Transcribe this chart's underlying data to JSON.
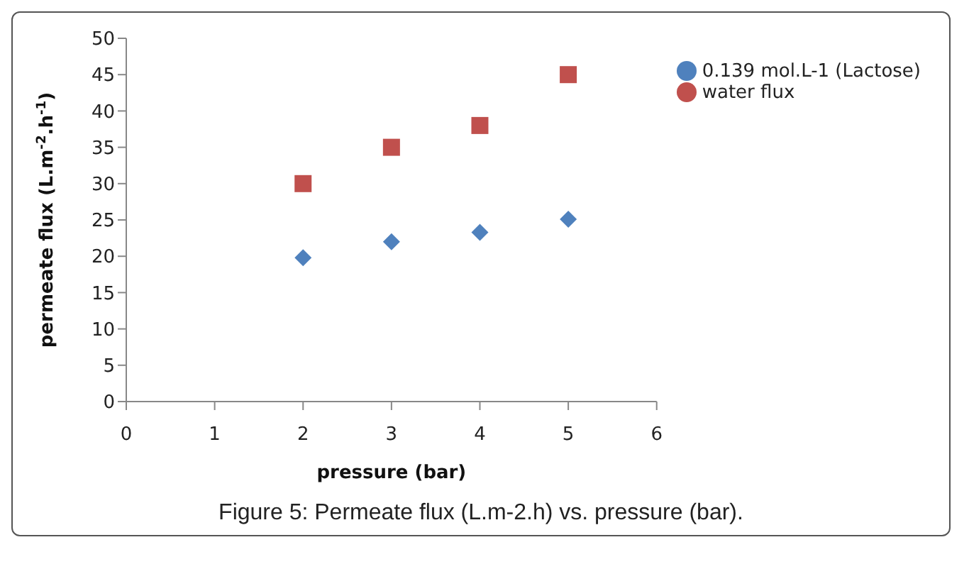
{
  "chart_data": {
    "type": "scatter",
    "xlabel": "pressure (bar)",
    "ylabel": "permeate  flux (L.m$^{-2}$.h$^{-1}$)",
    "x": [
      2,
      3,
      4,
      5
    ],
    "series": [
      {
        "name": "0.139 mol.L-1 (Lactose)",
        "color": "#4f81bd",
        "marker": "diamond",
        "values": [
          19.8,
          22,
          23.3,
          25.1
        ]
      },
      {
        "name": "water flux",
        "color": "#c0504d",
        "marker": "square",
        "values": [
          30,
          35,
          38,
          45
        ]
      }
    ],
    "xlim": [
      0,
      6
    ],
    "xticks": [
      0,
      1,
      2,
      3,
      4,
      5,
      6
    ],
    "ylim": [
      0,
      50
    ],
    "yticks": [
      0,
      5,
      10,
      15,
      20,
      25,
      30,
      35,
      40,
      45,
      50
    ],
    "grid": false,
    "legend": "right",
    "annotations": [
      "Figure 5: Permeate flux (L.m-2.h) vs. pressure (bar)."
    ]
  }
}
